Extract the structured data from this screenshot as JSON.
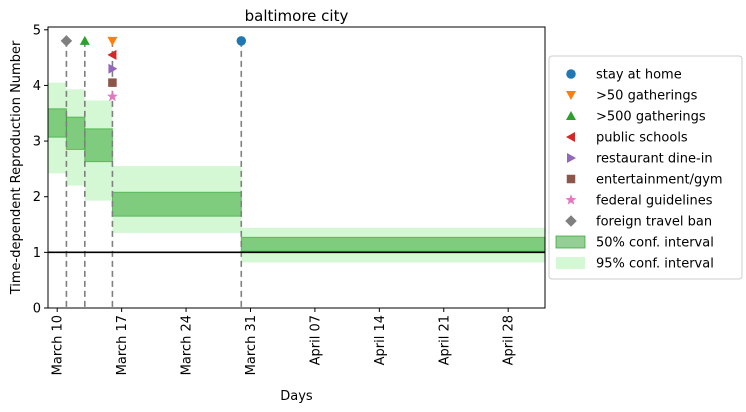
{
  "chart_data": {
    "type": "step",
    "title": "baltimore city",
    "xlabel": "Days",
    "ylabel": "Time-dependent Reproduction Number",
    "xlim": [
      "2020-03-09",
      "2020-05-02"
    ],
    "ylim": [
      0,
      5.05
    ],
    "yticks": [
      0,
      1,
      2,
      3,
      4,
      5
    ],
    "xticks": [
      {
        "date": "2020-03-10",
        "label": "March 10"
      },
      {
        "date": "2020-03-17",
        "label": "March 17"
      },
      {
        "date": "2020-03-24",
        "label": "March 24"
      },
      {
        "date": "2020-03-31",
        "label": "March 31"
      },
      {
        "date": "2020-04-07",
        "label": "April 07"
      },
      {
        "date": "2020-04-14",
        "label": "April 14"
      },
      {
        "date": "2020-04-21",
        "label": "April 21"
      },
      {
        "date": "2020-04-28",
        "label": "April 28"
      }
    ],
    "reference_line": {
      "y": 1
    },
    "segments": [
      {
        "start": "2020-03-09",
        "end": "2020-03-11",
        "ci50": [
          3.07,
          3.58
        ],
        "ci95": [
          2.42,
          4.05
        ]
      },
      {
        "start": "2020-03-11",
        "end": "2020-03-13",
        "ci50": [
          2.85,
          3.43
        ],
        "ci95": [
          2.2,
          3.93
        ]
      },
      {
        "start": "2020-03-13",
        "end": "2020-03-16",
        "ci50": [
          2.63,
          3.22
        ],
        "ci95": [
          1.93,
          3.73
        ]
      },
      {
        "start": "2020-03-16",
        "end": "2020-03-30",
        "ci50": [
          1.65,
          2.08
        ],
        "ci95": [
          1.35,
          2.55
        ]
      },
      {
        "start": "2020-03-30",
        "end": "2020-05-02",
        "ci50": [
          1.02,
          1.27
        ],
        "ci95": [
          0.82,
          1.44
        ]
      }
    ],
    "interventions": [
      {
        "name": "stay at home",
        "date": "2020-03-30",
        "y": 4.8,
        "marker": "circle",
        "color": "#1f77b4"
      },
      {
        "name": ">50 gatherings",
        "date": "2020-03-16",
        "y": 4.8,
        "marker": "triangle-down",
        "color": "#ff7f0e"
      },
      {
        "name": ">500 gatherings",
        "date": "2020-03-13",
        "y": 4.8,
        "marker": "triangle-up",
        "color": "#2ca02c"
      },
      {
        "name": "public schools",
        "date": "2020-03-16",
        "y": 4.55,
        "marker": "triangle-left",
        "color": "#d62728"
      },
      {
        "name": "restaurant dine-in",
        "date": "2020-03-16",
        "y": 4.3,
        "marker": "triangle-right",
        "color": "#9467bd"
      },
      {
        "name": "entertainment/gym",
        "date": "2020-03-16",
        "y": 4.05,
        "marker": "square",
        "color": "#8c564b"
      },
      {
        "name": "federal guidelines",
        "date": "2020-03-16",
        "y": 3.8,
        "marker": "star",
        "color": "#e377c2"
      },
      {
        "name": "foreign travel ban",
        "date": "2020-03-11",
        "y": 4.8,
        "marker": "diamond",
        "color": "#7f7f7f"
      }
    ],
    "band_legend": [
      {
        "name": "50% conf. interval",
        "fill": "#2ca02c",
        "opacity": 0.5
      },
      {
        "name": "95% conf. interval",
        "fill": "#90ee90",
        "opacity": 0.4
      }
    ],
    "legend_position": "right",
    "grid": false
  }
}
